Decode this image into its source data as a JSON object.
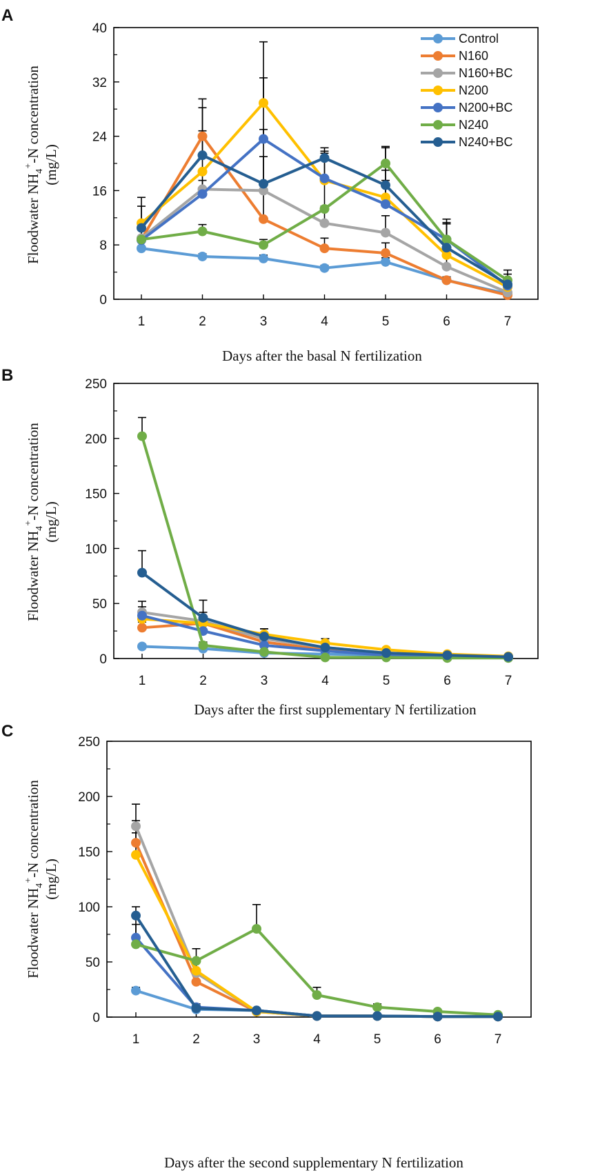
{
  "colors": {
    "Control": "#5B9BD5",
    "N160": "#ED7D31",
    "N160+BC": "#A5A5A5",
    "N200": "#FFC000",
    "N200+BC": "#4472C4",
    "N240": "#70AD47",
    "N240+BC": "#255E91"
  },
  "chart_data": [
    {
      "panel": "A",
      "type": "line",
      "x": [
        1,
        2,
        3,
        4,
        5,
        6,
        7
      ],
      "ylim": [
        0,
        40
      ],
      "yticks": [
        0,
        8,
        16,
        24,
        32,
        40
      ],
      "xlabel": "Days after the basal N fertilization",
      "ylabel_main": "Floodwater NH",
      "ylabel_sub": "4",
      "ylabel_sup": "+",
      "ylabel_tail": "-N concentration",
      "ylabel_unit": "(mg/L)",
      "legend": [
        "Control",
        "N160",
        "N160+BC",
        "N200",
        "N200+BC",
        "N240",
        "N240+BC"
      ],
      "series": [
        {
          "name": "Control",
          "values": [
            7.5,
            6.3,
            6.0,
            4.6,
            5.5,
            2.8,
            0.8
          ],
          "err": [
            1.2,
            0.4,
            0.5,
            0.4,
            0.6,
            0.4,
            0.3
          ]
        },
        {
          "name": "N160",
          "values": [
            8.8,
            24.0,
            11.8,
            7.5,
            6.8,
            2.8,
            0.6
          ],
          "err": [
            1.5,
            5.5,
            4.0,
            1.5,
            1.5,
            0.5,
            0.3
          ]
        },
        {
          "name": "N160+BC",
          "values": [
            9.0,
            16.2,
            16.0,
            11.2,
            9.8,
            4.8,
            1.0
          ],
          "err": [
            2.0,
            2.5,
            5.0,
            2.5,
            2.5,
            1.5,
            0.5
          ]
        },
        {
          "name": "N200",
          "values": [
            11.2,
            18.8,
            28.9,
            17.5,
            15.0,
            6.5,
            1.8
          ],
          "err": [
            2.5,
            6.0,
            9.0,
            4.0,
            4.0,
            2.0,
            0.8
          ]
        },
        {
          "name": "N200+BC",
          "values": [
            8.7,
            15.5,
            23.6,
            17.8,
            14.0,
            8.8,
            2.0
          ],
          "err": [
            2.0,
            2.0,
            9.0,
            4.0,
            3.5,
            3.0,
            1.0
          ]
        },
        {
          "name": "N240",
          "values": [
            8.8,
            10.0,
            8.0,
            13.3,
            20.0,
            8.8,
            2.8
          ],
          "err": [
            1.5,
            1.0,
            0.8,
            4.0,
            2.5,
            2.5,
            1.5
          ]
        },
        {
          "name": "N240+BC",
          "values": [
            10.5,
            21.2,
            17.0,
            20.8,
            16.8,
            7.6,
            2.2
          ],
          "err": [
            4.5,
            7.0,
            8.0,
            1.5,
            5.5,
            3.5,
            1.5
          ]
        }
      ]
    },
    {
      "panel": "B",
      "type": "line",
      "x": [
        1,
        2,
        3,
        4,
        5,
        6,
        7
      ],
      "ylim": [
        0,
        250
      ],
      "yticks": [
        0,
        50,
        100,
        150,
        200,
        250
      ],
      "xlabel": "Days after the first supplementary N fertilization",
      "ylabel_main": "Floodwater NH",
      "ylabel_sub": "4",
      "ylabel_sup": "+",
      "ylabel_tail": "-N concentration",
      "ylabel_unit": "(mg/L)",
      "series": [
        {
          "name": "Control",
          "values": [
            11,
            9,
            5,
            4,
            3,
            2,
            1
          ],
          "err": [
            2,
            1,
            1,
            1,
            0.5,
            0.5,
            0.3
          ]
        },
        {
          "name": "N160",
          "values": [
            28,
            32,
            15,
            8,
            4,
            2,
            1
          ],
          "err": [
            5,
            5,
            3,
            2,
            1,
            0.5,
            0.3
          ]
        },
        {
          "name": "N160+BC",
          "values": [
            42,
            34,
            18,
            10,
            5,
            3,
            1.5
          ],
          "err": [
            10,
            8,
            5,
            3,
            2,
            1,
            0.5
          ]
        },
        {
          "name": "N200",
          "values": [
            36,
            32,
            22,
            14,
            8,
            4,
            2
          ],
          "err": [
            8,
            6,
            5,
            4,
            2,
            1,
            0.5
          ]
        },
        {
          "name": "N200+BC",
          "values": [
            39,
            25,
            12,
            7,
            3,
            2,
            1
          ],
          "err": [
            8,
            5,
            3,
            2,
            1,
            0.5,
            0.3
          ]
        },
        {
          "name": "N240",
          "values": [
            202,
            12,
            6,
            1,
            1,
            0.5,
            0.5
          ],
          "err": [
            17,
            3,
            2,
            0.5,
            0.5,
            0.3,
            0.3
          ]
        },
        {
          "name": "N240+BC",
          "values": [
            78,
            37,
            20,
            10,
            5,
            3,
            1.5
          ],
          "err": [
            20,
            16,
            7,
            4,
            2,
            1,
            0.5
          ]
        }
      ]
    },
    {
      "panel": "C",
      "type": "line",
      "x": [
        1,
        2,
        3,
        4,
        5,
        6,
        7
      ],
      "ylim": [
        0,
        250
      ],
      "yticks": [
        0,
        50,
        100,
        150,
        200,
        250
      ],
      "xlabel": "Days after the second supplementary N fertilization",
      "ylabel_main": "Floodwater NH",
      "ylabel_sub": "4",
      "ylabel_sup": "+",
      "ylabel_tail": "-N concentration",
      "ylabel_unit": "(mg/L)",
      "series": [
        {
          "name": "Control",
          "values": [
            24,
            7,
            6,
            1,
            1,
            0.5,
            0.5
          ],
          "err": [
            3,
            1,
            1,
            0.3,
            0.3,
            0.2,
            0.2
          ]
        },
        {
          "name": "N160",
          "values": [
            158,
            32,
            5,
            1,
            1,
            0.5,
            0.5
          ],
          "err": [
            20,
            8,
            2,
            0.5,
            0.5,
            0.2,
            0.2
          ]
        },
        {
          "name": "N160+BC",
          "values": [
            173,
            40,
            5,
            1,
            1,
            0.5,
            0.5
          ],
          "err": [
            20,
            10,
            2,
            0.5,
            0.5,
            0.2,
            0.2
          ]
        },
        {
          "name": "N200",
          "values": [
            147,
            42,
            5,
            1,
            1,
            0.5,
            0.5
          ],
          "err": [
            20,
            10,
            2,
            0.5,
            0.5,
            0.2,
            0.2
          ]
        },
        {
          "name": "N200+BC",
          "values": [
            72,
            9,
            6,
            1,
            1,
            0.5,
            0.5
          ],
          "err": [
            20,
            3,
            2,
            0.5,
            0.5,
            0.2,
            0.2
          ]
        },
        {
          "name": "N240",
          "values": [
            66,
            51,
            80,
            20,
            9,
            5,
            2
          ],
          "err": [
            18,
            11,
            22,
            7,
            3,
            1.5,
            0.8
          ]
        },
        {
          "name": "N240+BC",
          "values": [
            92,
            8,
            6,
            1,
            1,
            0.5,
            0.5
          ],
          "err": [
            8,
            4,
            2,
            0.5,
            0.5,
            0.2,
            0.2
          ]
        }
      ]
    }
  ]
}
